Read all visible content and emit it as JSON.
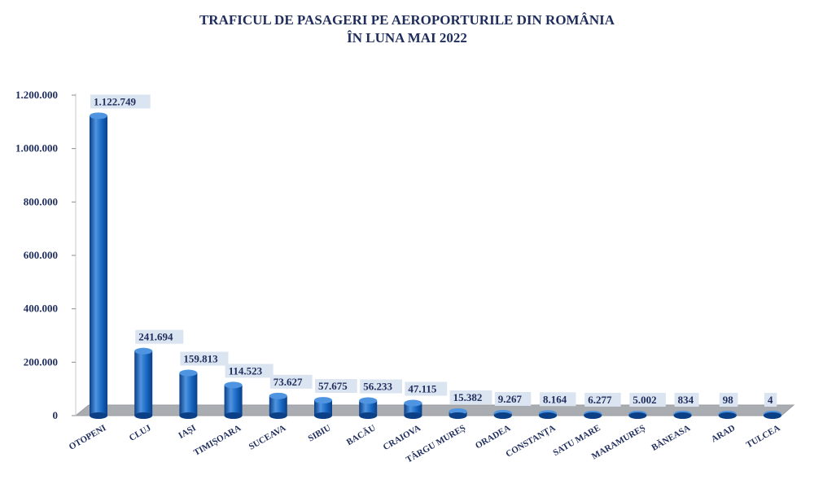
{
  "chart_data": {
    "type": "bar",
    "title_line1": "TRAFICUL DE PASAGERI PE AEROPORTURILE DIN ROMÂNIA",
    "title_line2": "ÎN LUNA MAI 2022",
    "categories": [
      "OTOPENI",
      "CLUJ",
      "IAȘI",
      "TIMIȘOARA",
      "SUCEAVA",
      "SIBIU",
      "BACĂU",
      "CRAIOVA",
      "TÂRGU MUREȘ",
      "ORADEA",
      "CONSTANȚA",
      "SATU MARE",
      "MARAMUREȘ",
      "BĂNEASA",
      "ARAD",
      "TULCEA"
    ],
    "values": [
      1122749,
      241694,
      159813,
      114523,
      73627,
      57675,
      56233,
      47115,
      15382,
      9267,
      8164,
      6277,
      5002,
      834,
      98,
      4
    ],
    "value_labels": [
      "1.122.749",
      "241.694",
      "159.813",
      "114.523",
      "73.627",
      "57.675",
      "56.233",
      "47.115",
      "15.382",
      "9.267",
      "8.164",
      "6.277",
      "5.002",
      "834",
      "98",
      "4"
    ],
    "yticks": [
      0,
      200000,
      400000,
      600000,
      800000,
      1000000,
      1200000
    ],
    "ytick_labels": [
      "0",
      "200.000",
      "400.000",
      "600.000",
      "800.000",
      "1.000.000",
      "1.200.000"
    ],
    "ylim": [
      0,
      1200000
    ],
    "colors": {
      "bar": "#1565c0",
      "bar_dark": "#0b3f86",
      "bar_light": "#4f94e0",
      "floor": "#a9acb0",
      "label_bg": "#dbe4f1",
      "text": "#1f2d5c"
    }
  }
}
